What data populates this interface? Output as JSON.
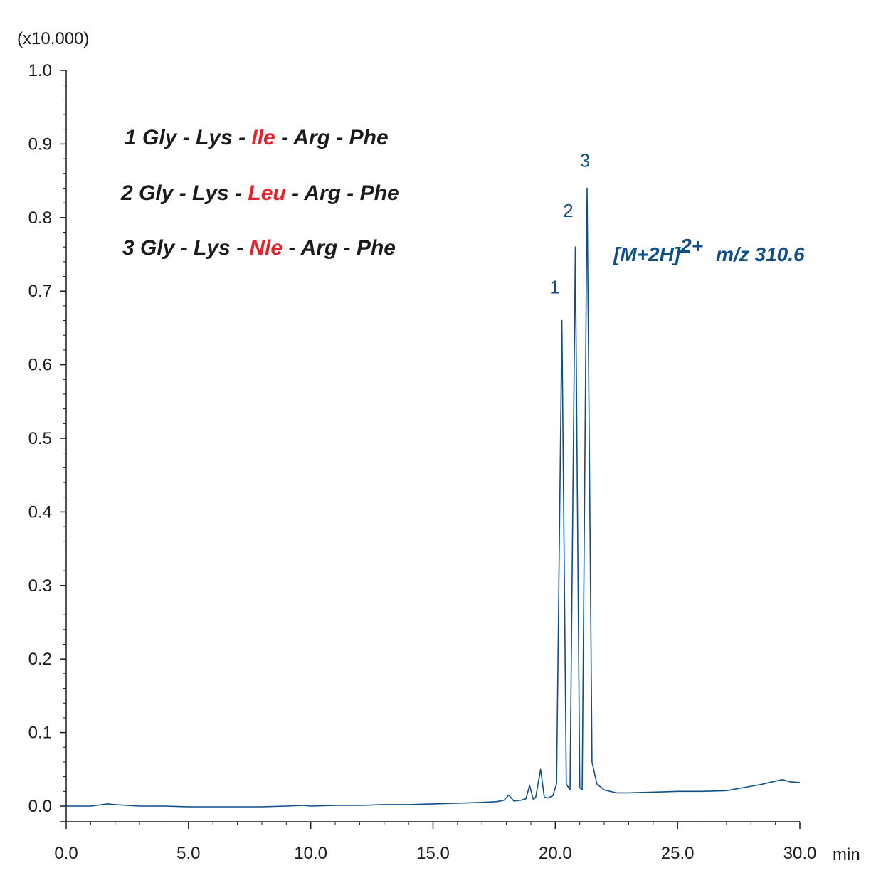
{
  "chart_data": {
    "type": "line",
    "y_multiplier_label": "(x10,000)",
    "x_unit_label": "min",
    "xlim": [
      0.0,
      30.0
    ],
    "ylim": [
      0.0,
      1.0
    ],
    "x_ticks": [
      "0.0",
      "5.0",
      "10.0",
      "15.0",
      "20.0",
      "25.0",
      "30.0"
    ],
    "y_ticks": [
      "0.0",
      "0.1",
      "0.2",
      "0.3",
      "0.4",
      "0.5",
      "0.6",
      "0.7",
      "0.8",
      "0.9",
      "1.0"
    ],
    "grid": false,
    "series_color": "#0d4f8a",
    "highlight_color": "#e8202a",
    "legend_entries": [
      {
        "prefix": "1 Gly - Lys - ",
        "highlight": "Ile",
        "suffix": " - Arg - Phe"
      },
      {
        "prefix": "2 Gly - Lys - ",
        "highlight": "Leu",
        "suffix": " - Arg - Phe"
      },
      {
        "prefix": "3 Gly - Lys - ",
        "highlight": "Nle",
        "suffix": " - Arg - Phe"
      }
    ],
    "ion_label": {
      "main": "[M+2H]",
      "sup": "2+",
      "tail": "m/z 310.6"
    },
    "peaks": [
      {
        "label": "1",
        "rt": 20.27,
        "height": 0.66
      },
      {
        "label": "2",
        "rt": 20.82,
        "height": 0.76
      },
      {
        "label": "3",
        "rt": 21.3,
        "height": 0.84
      }
    ],
    "trace": {
      "x": [
        0.0,
        1.0,
        1.7,
        2.0,
        3.0,
        4.0,
        5.0,
        6.0,
        7.0,
        8.0,
        9.0,
        9.7,
        10.0,
        11.0,
        12.0,
        13.0,
        14.0,
        15.0,
        16.0,
        17.0,
        17.6,
        17.9,
        18.1,
        18.3,
        18.6,
        18.8,
        18.95,
        19.1,
        19.2,
        19.4,
        19.55,
        19.7,
        19.9,
        20.05,
        20.27,
        20.45,
        20.6,
        20.82,
        21.0,
        21.1,
        21.3,
        21.5,
        21.7,
        22.0,
        22.5,
        23.0,
        24.0,
        25.0,
        26.0,
        27.0,
        28.0,
        28.5,
        29.0,
        29.3,
        29.6,
        30.0
      ],
      "y": [
        0.0,
        0.0,
        0.003,
        0.002,
        0.0,
        0.0,
        -0.001,
        -0.001,
        -0.001,
        -0.001,
        0.0,
        0.001,
        0.0,
        0.001,
        0.001,
        0.002,
        0.002,
        0.003,
        0.004,
        0.005,
        0.006,
        0.008,
        0.015,
        0.007,
        0.008,
        0.01,
        0.028,
        0.009,
        0.012,
        0.05,
        0.012,
        0.011,
        0.014,
        0.03,
        0.66,
        0.03,
        0.022,
        0.76,
        0.025,
        0.022,
        0.84,
        0.06,
        0.03,
        0.022,
        0.018,
        0.018,
        0.019,
        0.02,
        0.02,
        0.021,
        0.027,
        0.03,
        0.034,
        0.036,
        0.033,
        0.032
      ]
    }
  }
}
